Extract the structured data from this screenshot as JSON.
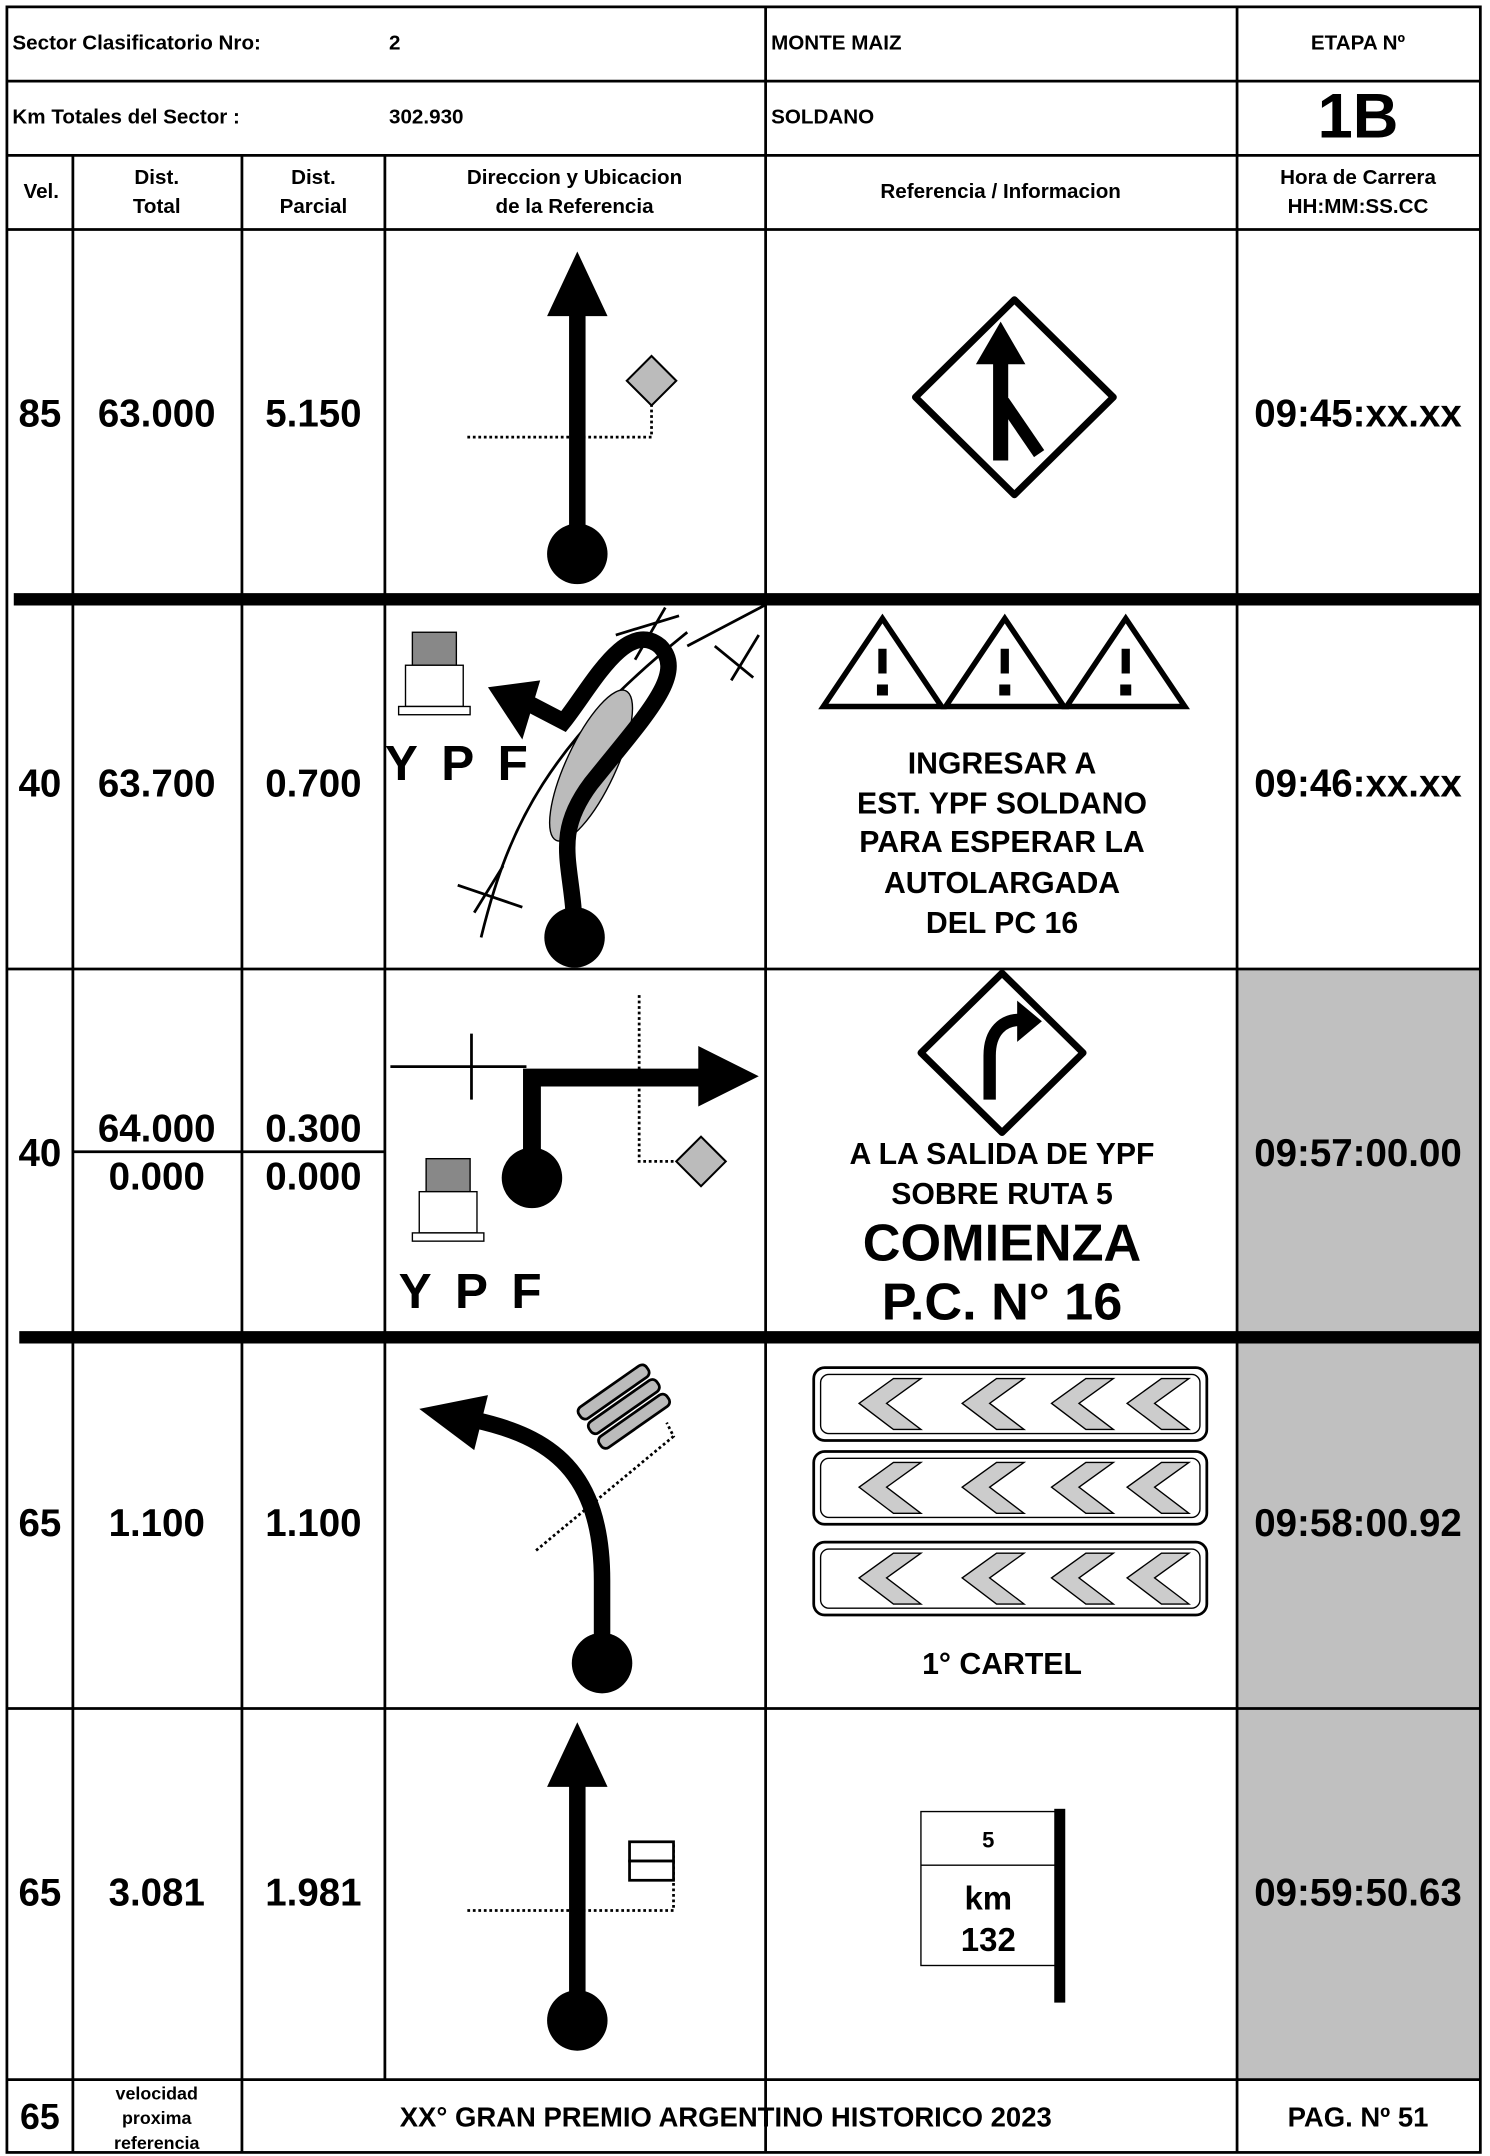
{
  "header": {
    "sector_label": "Sector Clasificatorio Nro:",
    "sector_value": "2",
    "km_label": "Km Totales del Sector :",
    "km_value": "302.930",
    "from": "MONTE MAIZ",
    "to": "SOLDANO",
    "stage_label": "ETAPA Nº",
    "stage_value": "1B"
  },
  "columns": [
    [
      "Vel."
    ],
    [
      "Dist.",
      "Total"
    ],
    [
      "Dist.",
      "Parcial"
    ],
    [
      "Direccion y Ubicacion",
      "de la Referencia"
    ],
    [
      "Referencia / Informacion"
    ],
    [
      "Hora de Carrera",
      "HH:MM:SS.CC"
    ]
  ],
  "rows": [
    {
      "vel": "85",
      "dist_total": [
        "63.000"
      ],
      "dist_parcial": [
        "5.150"
      ],
      "time": "09:45:xx.xx"
    },
    {
      "vel": "40",
      "dist_total": [
        "63.700"
      ],
      "dist_parcial": [
        "0.700"
      ],
      "info": [
        "INGRESAR A",
        "EST. YPF SOLDANO",
        "PARA ESPERAR LA",
        "AUTOLARGADA",
        "DEL PC 16"
      ],
      "labels": [
        "YPF"
      ],
      "time": "09:46:xx.xx"
    },
    {
      "vel": "40",
      "dist_total": [
        "64.000",
        "0.000"
      ],
      "dist_parcial": [
        "0.300",
        "0.000"
      ],
      "info": [
        "A LA SALIDA DE YPF",
        "SOBRE RUTA 5"
      ],
      "info_large": [
        "COMIENZA",
        "P.C. N° 16"
      ],
      "labels": [
        "YPF"
      ],
      "time": "09:57:00.00"
    },
    {
      "vel": "65",
      "dist_total": [
        "1.100"
      ],
      "dist_parcial": [
        "1.100"
      ],
      "info": [
        "1° CARTEL"
      ],
      "time": "09:58:00.92"
    },
    {
      "vel": "65",
      "dist_total": [
        "3.081"
      ],
      "dist_parcial": [
        "1.981"
      ],
      "sign": [
        "5",
        "km",
        "132"
      ],
      "time": "09:59:50.63"
    }
  ],
  "footer": {
    "vel": "65",
    "vel_note": [
      "velocidad",
      "proxima",
      "referencia"
    ],
    "title": "XX° GRAN PREMIO ARGENTINO HISTORICO 2023",
    "page": "PAG. Nº 51"
  }
}
